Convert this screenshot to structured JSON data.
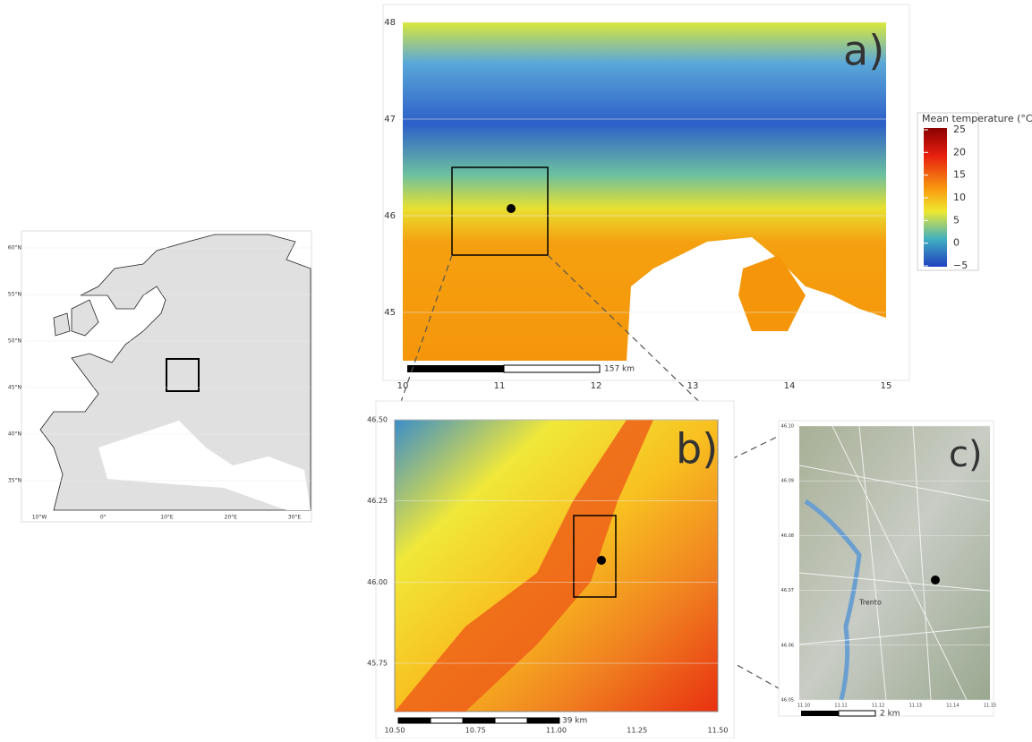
{
  "europe": {
    "yticks": [
      "60°N",
      "55°N",
      "50°N",
      "45°N",
      "40°N",
      "35°N"
    ],
    "xticks": [
      "10°W",
      "0°",
      "10°E",
      "20°E",
      "30°E"
    ]
  },
  "panel_a": {
    "tag": "a)",
    "yticks": [
      "48",
      "47",
      "46",
      "45"
    ],
    "xticks": [
      "10",
      "11",
      "12",
      "13",
      "14",
      "15"
    ],
    "scale_label": "157 km",
    "legend": {
      "title": "Mean temperature (°C)",
      "ticks": [
        "25",
        "20",
        "15",
        "10",
        "5",
        "0",
        "−5"
      ]
    }
  },
  "panel_b": {
    "tag": "b)",
    "yticks": [
      "46.50",
      "46.25",
      "46.00",
      "45.75"
    ],
    "xticks": [
      "10.50",
      "10.75",
      "11.00",
      "11.25",
      "11.50"
    ],
    "scale_label": "39 km"
  },
  "panel_c": {
    "tag": "c)",
    "yticks": [
      "46.10",
      "46.09",
      "46.08",
      "46.07",
      "46.06",
      "46.05"
    ],
    "xticks": [
      "11.10",
      "11.11",
      "11.12",
      "11.13",
      "11.14",
      "11.15"
    ],
    "scale_label": "2 km",
    "place": "Trento"
  }
}
